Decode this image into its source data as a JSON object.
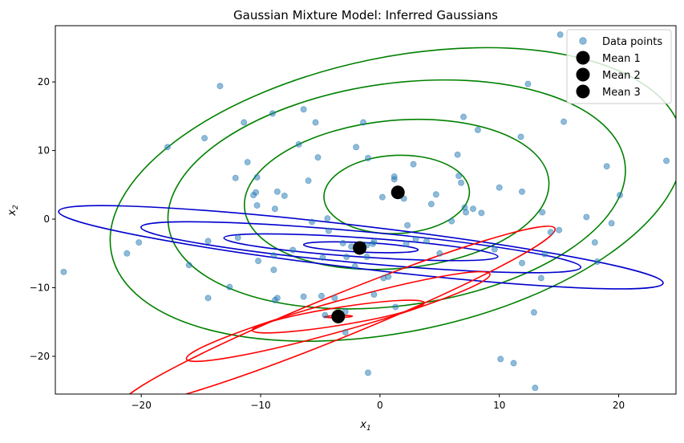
{
  "chart_data": {
    "type": "scatter",
    "title": "Gaussian Mixture Model: Inferred Gaussians",
    "xlabel": "x",
    "xlabel_sub": "1",
    "ylabel": "x",
    "ylabel_sub": "2",
    "xlim": [
      -27.2,
      24.8
    ],
    "ylim": [
      -25.5,
      28.2
    ],
    "xticks": [
      -20,
      -10,
      0,
      10,
      20
    ],
    "yticks": [
      -20,
      -10,
      0,
      10,
      20
    ],
    "grid": false,
    "legend_position": "top-right",
    "legend": [
      {
        "label": "Data points",
        "kind": "point",
        "color": "#1f77b4"
      },
      {
        "label": "Mean 1",
        "kind": "mean",
        "color": "#000000"
      },
      {
        "label": "Mean 2",
        "kind": "mean",
        "color": "#000000"
      },
      {
        "label": "Mean 3",
        "kind": "mean",
        "color": "#000000"
      }
    ],
    "points": [
      [
        -26.5,
        -7.7
      ],
      [
        -21.2,
        -5.0
      ],
      [
        -20.2,
        -3.4
      ],
      [
        -17.8,
        10.5
      ],
      [
        -16.0,
        -6.7
      ],
      [
        -14.7,
        11.8
      ],
      [
        -14.4,
        -3.2
      ],
      [
        -14.4,
        -11.5
      ],
      [
        -13.4,
        19.4
      ],
      [
        -12.6,
        -9.9
      ],
      [
        -12.1,
        6.0
      ],
      [
        -11.9,
        -2.7
      ],
      [
        -11.4,
        14.1
      ],
      [
        -11.1,
        8.3
      ],
      [
        -10.6,
        3.5
      ],
      [
        -10.4,
        3.9
      ],
      [
        -10.3,
        6.1
      ],
      [
        -10.3,
        2.0
      ],
      [
        -10.2,
        -6.1
      ],
      [
        -9.0,
        15.4
      ],
      [
        -8.8,
        1.5
      ],
      [
        -8.9,
        -5.3
      ],
      [
        -8.9,
        -7.4
      ],
      [
        -8.6,
        4.0
      ],
      [
        -8.8,
        -11.8
      ],
      [
        -8.6,
        -11.5
      ],
      [
        -8.0,
        3.4
      ],
      [
        -7.3,
        -4.5
      ],
      [
        -6.8,
        10.9
      ],
      [
        -6.4,
        -11.3
      ],
      [
        -6.4,
        16.0
      ],
      [
        -6.0,
        5.6
      ],
      [
        -5.7,
        -0.4
      ],
      [
        -5.4,
        14.1
      ],
      [
        -5.2,
        9.0
      ],
      [
        -4.9,
        -11.2
      ],
      [
        -4.8,
        -5.6
      ],
      [
        -4.6,
        -14.0
      ],
      [
        -4.4,
        0.1
      ],
      [
        -4.3,
        -1.7
      ],
      [
        -3.8,
        -11.5
      ],
      [
        -3.1,
        -3.5
      ],
      [
        -2.9,
        -13.5
      ],
      [
        -2.9,
        -16.5
      ],
      [
        -2.8,
        -5.5
      ],
      [
        -2.4,
        -4.0
      ],
      [
        -2.1,
        -6.9
      ],
      [
        -2.0,
        10.5
      ],
      [
        -1.6,
        -4.4
      ],
      [
        -1.1,
        -5.5
      ],
      [
        -1.4,
        14.1
      ],
      [
        -1.1,
        -3.8
      ],
      [
        -1.0,
        -22.4
      ],
      [
        -1.0,
        8.9
      ],
      [
        -0.6,
        -3.6
      ],
      [
        -0.5,
        -11.0
      ],
      [
        -0.5,
        -3.3
      ],
      [
        0.2,
        3.2
      ],
      [
        0.3,
        -8.6
      ],
      [
        0.7,
        -8.4
      ],
      [
        1.2,
        5.8
      ],
      [
        1.2,
        6.2
      ],
      [
        1.3,
        -12.8
      ],
      [
        2.0,
        3.0
      ],
      [
        2.2,
        -3.6
      ],
      [
        2.3,
        -0.9
      ],
      [
        2.8,
        8.0
      ],
      [
        3.0,
        -2.9
      ],
      [
        3.9,
        -3.2
      ],
      [
        4.3,
        2.2
      ],
      [
        4.7,
        3.6
      ],
      [
        5.0,
        -5.0
      ],
      [
        6.0,
        -0.3
      ],
      [
        6.5,
        9.4
      ],
      [
        6.6,
        6.3
      ],
      [
        6.8,
        5.3
      ],
      [
        7.0,
        14.9
      ],
      [
        7.1,
        1.7
      ],
      [
        7.2,
        1.0
      ],
      [
        7.8,
        1.5
      ],
      [
        8.2,
        13.0
      ],
      [
        8.5,
        0.9
      ],
      [
        9.6,
        -4.4
      ],
      [
        10.0,
        4.6
      ],
      [
        10.1,
        -20.4
      ],
      [
        11.2,
        -21.0
      ],
      [
        11.8,
        12.0
      ],
      [
        11.9,
        4.0
      ],
      [
        11.9,
        -6.4
      ],
      [
        12.4,
        19.7
      ],
      [
        12.9,
        -13.6
      ],
      [
        13.0,
        -24.6
      ],
      [
        13.5,
        -8.6
      ],
      [
        13.6,
        1.0
      ],
      [
        13.8,
        -5.1
      ],
      [
        14.3,
        -1.9
      ],
      [
        15.0,
        -1.6
      ],
      [
        15.1,
        26.9
      ],
      [
        15.4,
        14.2
      ],
      [
        17.3,
        0.3
      ],
      [
        18.0,
        -3.4
      ],
      [
        18.2,
        -6.2
      ],
      [
        19.0,
        7.7
      ],
      [
        19.4,
        -0.6
      ],
      [
        20.1,
        3.5
      ],
      [
        24.0,
        8.5
      ]
    ],
    "means": [
      {
        "name": "Mean 1",
        "x": 1.5,
        "y": 3.9
      },
      {
        "name": "Mean 2",
        "x": -1.7,
        "y": -4.2
      },
      {
        "name": "Mean 3",
        "x": -3.5,
        "y": -14.2
      }
    ],
    "components": [
      {
        "color": "#008000",
        "center": [
          1.4,
          3.6
        ],
        "axes": [
          3.1,
          15.0
        ],
        "contours": [
          {
            "sx": 6.1,
            "sy": 5.7,
            "tilt": -1.0
          },
          {
            "sx": 12.8,
            "sy": 10.8,
            "tilt": -2.0
          },
          {
            "sx": 19.3,
            "sy": 16.2,
            "tilt": -3.0
          },
          {
            "sx": 24.4,
            "sy": 20.0,
            "tilt": -4.5
          }
        ]
      },
      {
        "color": "#0000cd",
        "center": [
          -1.6,
          -4.1
        ],
        "axes": [
          0.9,
          3.5
        ],
        "contours": [
          {
            "sx": 4.8,
            "sy": 0.7,
            "tilt": 1.0
          },
          {
            "sx": 11.5,
            "sy": 1.4,
            "tilt": 1.5
          },
          {
            "sx": 18.5,
            "sy": 2.3,
            "tilt": 2.0
          },
          {
            "sx": 25.5,
            "sy": 3.1,
            "tilt": 2.6
          }
        ]
      },
      {
        "color": "#ff0000",
        "center": [
          -3.5,
          -14.2
        ],
        "axes": [
          0.5,
          2.0
        ],
        "contours": [
          {
            "sx": 1.2,
            "sy": 0.15,
            "tilt": -0.5
          },
          {
            "sx": 7.3,
            "sy": 1.3,
            "tilt": -3.5
          },
          {
            "sx": 13.2,
            "sy": 2.2,
            "tilt": -6.0
          },
          {
            "sx": 19.6,
            "sy": 3.1,
            "tilt": -8.5
          }
        ]
      }
    ]
  }
}
